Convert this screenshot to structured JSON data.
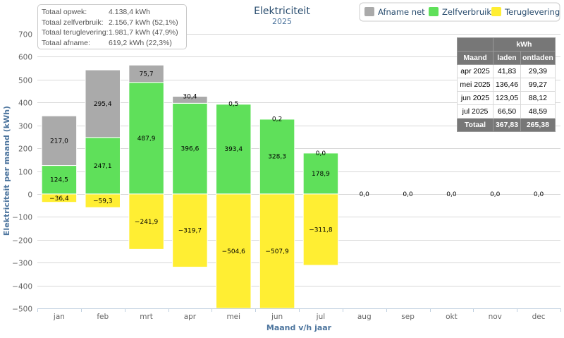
{
  "summary": {
    "rows": [
      {
        "label": "Totaal opwek:",
        "value": "4.138,4 kWh"
      },
      {
        "label": "Totaal zelfverbruik:",
        "value": "2.156,7 kWh (52,1%)"
      },
      {
        "label": "Totaal teruglevering:",
        "value": "1.981,7 kWh (47,9%)"
      },
      {
        "label": "Totaal afname:",
        "value": "619,2 kWh (22,3%)"
      }
    ]
  },
  "battery_table": {
    "unit_header": "kWh",
    "headers": [
      "Maand",
      "laden",
      "ontladen"
    ],
    "rows": [
      [
        "apr 2025",
        "41,83",
        "29,39"
      ],
      [
        "mei 2025",
        "136,46",
        "99,27"
      ],
      [
        "jun 2025",
        "123,05",
        "88,12"
      ],
      [
        "jul 2025",
        "66,50",
        "48,59"
      ]
    ],
    "total": [
      "Totaal",
      "367,83",
      "265,38"
    ]
  },
  "chart_data": {
    "type": "bar",
    "stacked": true,
    "title": "Elektriciteit",
    "subtitle": "2025",
    "xlabel": "Maand v/h jaar",
    "ylabel": "Elektriciteit per maand (kWh)",
    "ylim": [
      -500,
      700
    ],
    "yticks": [
      700,
      600,
      500,
      400,
      300,
      200,
      100,
      0,
      -100,
      -200,
      -300,
      -400,
      -500
    ],
    "grid": true,
    "legend_position": "top-right",
    "categories": [
      "jan",
      "feb",
      "mrt",
      "apr",
      "mei",
      "jun",
      "jul",
      "aug",
      "sep",
      "okt",
      "nov",
      "dec"
    ],
    "series": [
      {
        "name": "Afname net",
        "color": "#aaaaaa",
        "values": [
          217.0,
          295.4,
          75.7,
          30.4,
          0.5,
          0.2,
          0.0,
          0.0,
          0.0,
          0.0,
          0.0,
          0.0
        ],
        "labels": [
          "217,0",
          "295,4",
          "75,7",
          "30,4",
          "0,5",
          "0,2",
          "0,0",
          "0,0",
          "0,0",
          "0,0",
          "0,0",
          "0,0"
        ]
      },
      {
        "name": "Zelfverbruik",
        "color": "#5fe05a",
        "values": [
          124.5,
          247.1,
          487.9,
          396.6,
          393.4,
          328.3,
          178.9,
          0,
          0,
          0,
          0,
          0
        ],
        "labels": [
          "124,5",
          "247,1",
          "487,9",
          "396,6",
          "393,4",
          "328,3",
          "178,9",
          "",
          "",
          "",
          "",
          ""
        ]
      },
      {
        "name": "Teruglevering",
        "color": "#ffee33",
        "values": [
          -36.4,
          -59.3,
          -241.9,
          -319.7,
          -504.6,
          -507.9,
          -311.8,
          0,
          0,
          0,
          0,
          0
        ],
        "labels": [
          "-36,4",
          "-59,3",
          "-241,9",
          "-319,7",
          "-504,6",
          "-507,9",
          "-311,8",
          "",
          "",
          "",
          "",
          ""
        ]
      }
    ]
  }
}
